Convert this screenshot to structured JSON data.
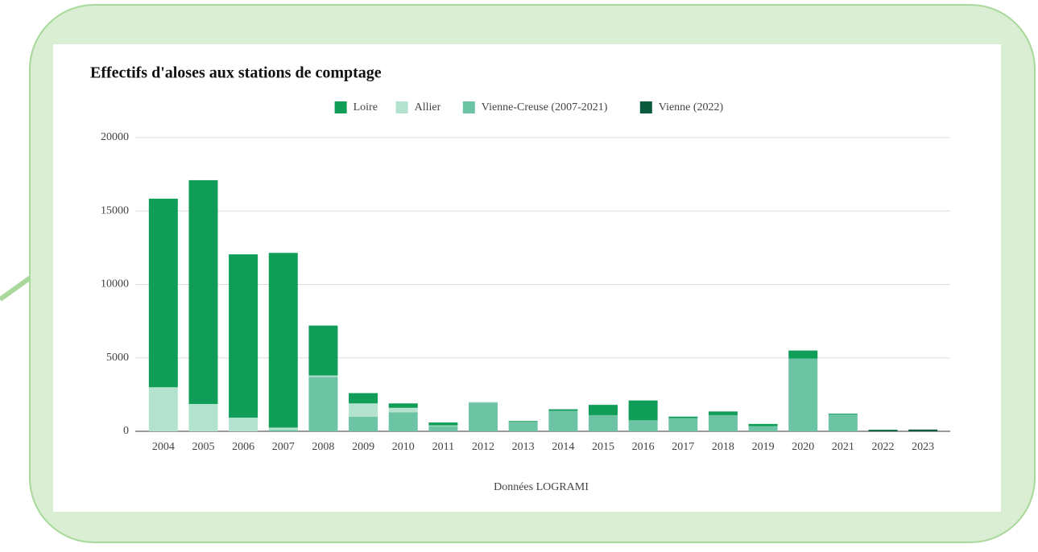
{
  "chart_data": {
    "type": "bar",
    "stacked": true,
    "title": "Effectifs d'aloses aux stations de comptage",
    "xlabel": "Données LOGRAMI",
    "legend": "top",
    "grid": true,
    "categories": [
      "2004",
      "2005",
      "2006",
      "2007",
      "2008",
      "2009",
      "2010",
      "2011",
      "2012",
      "2013",
      "2014",
      "2015",
      "2016",
      "2017",
      "2018",
      "2019",
      "2020",
      "2021",
      "2022",
      "2023"
    ],
    "series": [
      {
        "name": "Loire",
        "color": "#0f9d58",
        "values": [
          12840,
          15240,
          11120,
          11900,
          3400,
          700,
          300,
          200,
          0,
          50,
          100,
          700,
          1350,
          100,
          250,
          150,
          550,
          50,
          30,
          0
        ]
      },
      {
        "name": "Allier",
        "color": "#b3e3cf",
        "values": [
          3000,
          1860,
          930,
          150,
          100,
          900,
          300,
          50,
          50,
          0,
          0,
          0,
          0,
          0,
          0,
          0,
          0,
          0,
          0,
          0
        ]
      },
      {
        "name": "Vienne-Creuse (2007-2021)",
        "color": "#6cc4a4",
        "values": [
          0,
          0,
          0,
          100,
          3700,
          1000,
          1300,
          350,
          1950,
          650,
          1400,
          1100,
          750,
          900,
          1100,
          350,
          4950,
          1150,
          0,
          0
        ]
      },
      {
        "name": "Vienne (2022)",
        "color": "#0b5a3e",
        "values": [
          0,
          0,
          0,
          0,
          0,
          0,
          0,
          0,
          0,
          0,
          0,
          0,
          0,
          0,
          0,
          0,
          0,
          0,
          80,
          120
        ]
      }
    ],
    "ylim": [
      0,
      20000
    ],
    "yticks": [
      0,
      5000,
      10000,
      15000,
      20000
    ]
  }
}
